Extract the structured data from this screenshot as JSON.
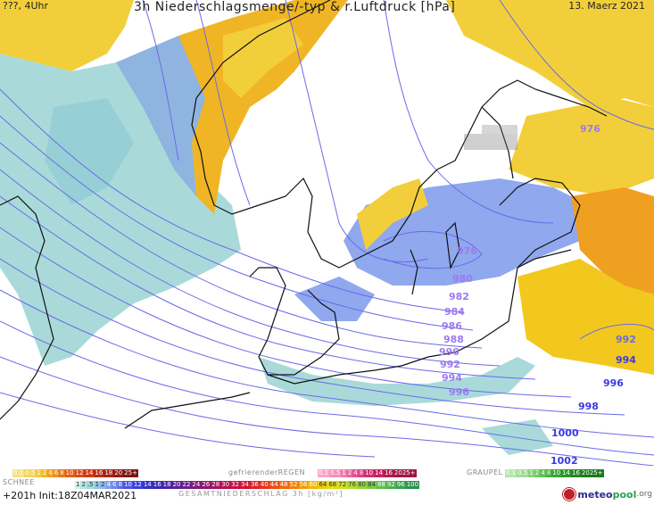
{
  "header": {
    "left": "???, 4Uhr",
    "title": "3h Niederschlagsmenge/-typ & r.Luftdruck [hPa]",
    "date": "13. Maerz 2021"
  },
  "isobars": [
    "976",
    "978",
    "980",
    "982",
    "984",
    "986",
    "988",
    "990",
    "992",
    "994",
    "996",
    "998",
    "1000",
    "1002",
    "992",
    "994",
    "996"
  ],
  "legend": {
    "rain_title": "",
    "rain_scale": [
      "0.1",
      "0.5",
      "1",
      "2",
      "4",
      "6",
      "8",
      "10",
      "12",
      "14",
      "16",
      "18",
      "20",
      "25+"
    ],
    "freezing_title": "gefrierenderREGEN",
    "freezing_scale": [
      "0.1",
      "0.5",
      "1",
      "2",
      "4",
      "8",
      "10",
      "14",
      "16",
      "2025+"
    ],
    "graupel_title": "GRAUPEL",
    "graupel_scale": [
      "0.1",
      "0.5",
      "1",
      "2",
      "4",
      "8",
      "10",
      "14",
      "16",
      "2025+"
    ],
    "snow_title": "SCHNEE",
    "snow_scale": [
      "1",
      "2",
      ".5",
      "1",
      "2",
      "4",
      "6",
      "8",
      "10",
      "12",
      "14",
      "16",
      "18",
      "20",
      "22",
      "24",
      "26",
      "28",
      "30",
      "32",
      "34",
      "36",
      "40",
      "44",
      "48",
      "52",
      "56",
      "60",
      "64",
      "68",
      "72",
      "76",
      "80",
      "84",
      "88",
      "92",
      "96",
      "100"
    ],
    "total_title": "GESAMTNIEDERSCHLAG 3h [kg/m²]"
  },
  "footer": {
    "run": "+201h Init:18Z04MAR2021",
    "logo_a": "meteo",
    "logo_b": "pool",
    "logo_c": ".org"
  },
  "colors": {
    "rain_yellow": "#f2c81e",
    "rain_orange": "#f0a020",
    "snow_blue": "#8fa8ee",
    "snow_cyan": "#9fd8dc",
    "isobar": "#6a6ae8",
    "coast": "#111111"
  }
}
